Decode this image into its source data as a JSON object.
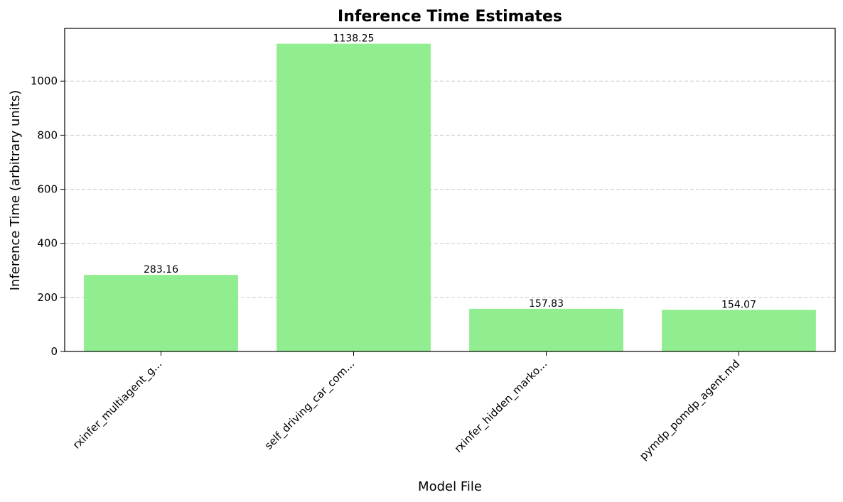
{
  "chart_data": {
    "type": "bar",
    "title": "Inference Time Estimates",
    "xlabel": "Model File",
    "ylabel": "Inference Time (arbitrary units)",
    "categories": [
      "rxinfer_multiagent_g...",
      "self_driving_car_com...",
      "rxinfer_hidden_marko...",
      "pymdp_pomdp_agent.md"
    ],
    "values": [
      283.16,
      1138.25,
      157.83,
      154.07
    ],
    "value_labels": [
      "283.16",
      "1138.25",
      "157.83",
      "154.07"
    ],
    "ylim": [
      0,
      1195
    ],
    "yticks": [
      0,
      200,
      400,
      600,
      800,
      1000
    ],
    "grid": "y-dashed",
    "bar_color": "#90ee90",
    "grid_color": "#c8c8c8"
  }
}
